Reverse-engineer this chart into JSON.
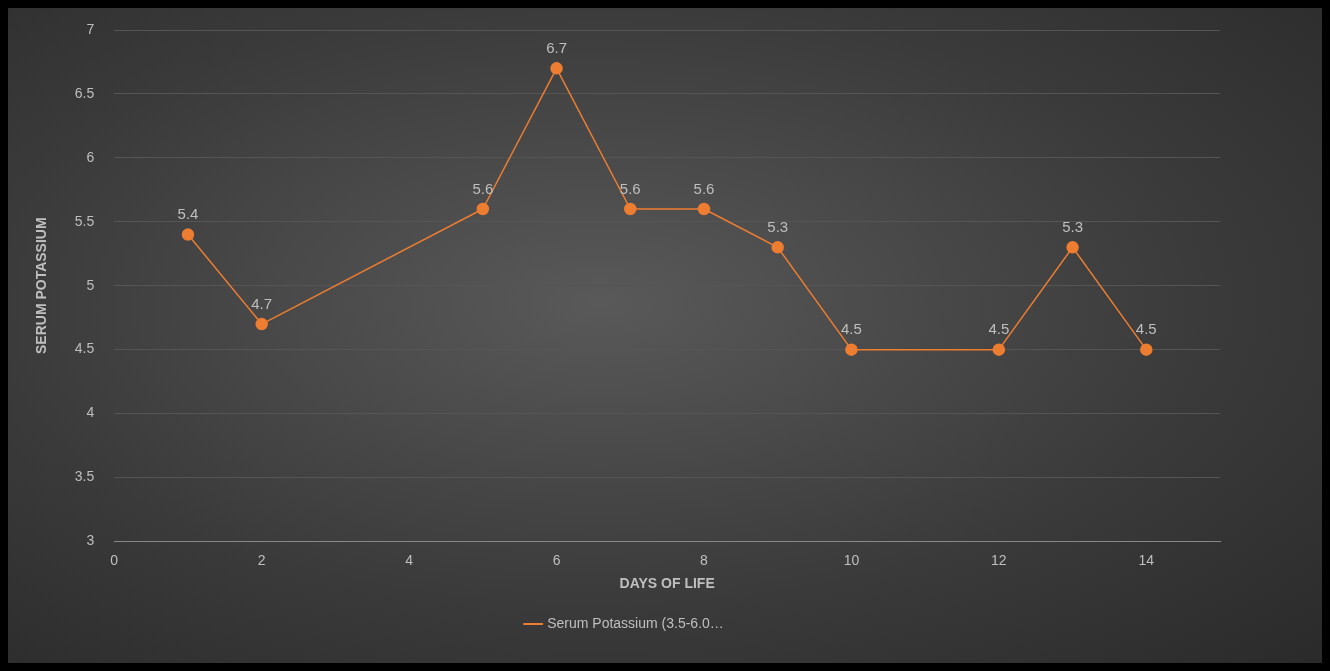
{
  "chart_data": {
    "type": "line",
    "xlabel": "DAYS OF LIFE",
    "ylabel": "SERUM POTASSIUM",
    "x": [
      1,
      2,
      5,
      6,
      7,
      8,
      9,
      10,
      12,
      13,
      14
    ],
    "series": [
      {
        "name": "Serum Potassium (3.5-6.0…",
        "color": "#ed7d31",
        "values": [
          5.4,
          4.7,
          5.6,
          6.7,
          5.6,
          5.6,
          5.3,
          4.5,
          4.5,
          5.3,
          4.5
        ]
      }
    ],
    "xlim": [
      0,
      15
    ],
    "xticks": [
      0,
      2,
      4,
      6,
      8,
      10,
      12,
      14
    ],
    "ylim": [
      3,
      7
    ],
    "yticks": [
      3,
      3.5,
      4,
      4.5,
      5,
      5.5,
      6,
      6.5,
      7
    ],
    "grid": "y",
    "legend": "bottom",
    "marker": "circle",
    "line_style": "solid",
    "data_labels": true
  }
}
